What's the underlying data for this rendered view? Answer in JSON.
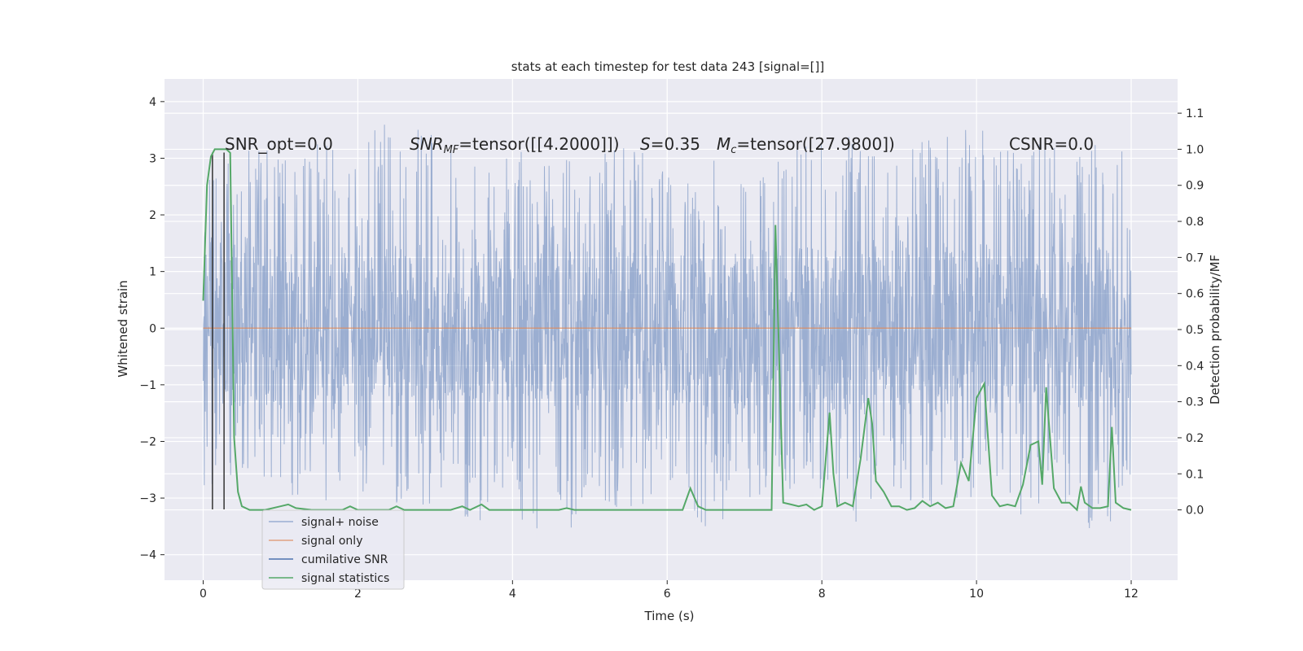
{
  "chart_data": {
    "type": "line",
    "title": "stats at each timestep for test data 243 [signal=[]]",
    "xlabel": "Time (s)",
    "ylabel": "Whitened strain",
    "ylabel_right": "Detection probability/MF",
    "xlim": [
      -0.5,
      12.6
    ],
    "ylim": [
      -4.45,
      4.4
    ],
    "ylim_right": [
      -0.195,
      1.195
    ],
    "x_ticks": [
      0,
      2,
      4,
      6,
      8,
      10,
      12
    ],
    "y_ticks": [
      -4,
      -3,
      -2,
      -1,
      0,
      1,
      2,
      3,
      4
    ],
    "y_ticks_right": [
      0.0,
      0.1,
      0.2,
      0.3,
      0.4,
      0.5,
      0.6,
      0.7,
      0.8,
      0.9,
      1.0,
      1.1
    ],
    "grid": true,
    "legend_placement": "lower-left",
    "colors": {
      "background": "#eaeaf2",
      "grid": "#ffffff",
      "noise": "#4c72b0",
      "signal_only": "#dd8452",
      "cumulative_snr": "#4c72b0",
      "signal_statistics": "#55a868",
      "markers": "#333333"
    },
    "annotations": {
      "snr_opt": "SNR_opt=0.0",
      "snr_mf_prefix": "SNR",
      "snr_mf_sub": "MF",
      "snr_mf_value": "=tensor([[4.2000]])",
      "s_label": "S",
      "s_value": "=0.35",
      "mc_label": "M",
      "mc_sub": "c",
      "mc_value": "=tensor([27.9800])",
      "csnr": "CSNR=0.0"
    },
    "series": [
      {
        "name": "signal+ noise",
        "description": "dense noise trace, envelope approx ±1.3 core with spikes",
        "core_band": [
          -1.3,
          1.3
        ],
        "envelope_upper": [
          [
            0,
            2.6
          ],
          [
            0.5,
            3.2
          ],
          [
            1,
            3.1
          ],
          [
            1.5,
            3.3
          ],
          [
            2,
            3.0
          ],
          [
            2.3,
            3.7
          ],
          [
            3,
            3.5
          ],
          [
            3.5,
            3.0
          ],
          [
            4,
            3.2
          ],
          [
            4.5,
            2.9
          ],
          [
            5,
            3.1
          ],
          [
            5.5,
            3.3
          ],
          [
            6,
            2.9
          ],
          [
            6.5,
            3.2
          ],
          [
            7,
            3.0
          ],
          [
            7.5,
            3.1
          ],
          [
            8,
            3.6
          ],
          [
            8.5,
            3.3
          ],
          [
            9,
            3.2
          ],
          [
            9.5,
            3.4
          ],
          [
            10,
            3.7
          ],
          [
            10.3,
            4.0
          ],
          [
            10.5,
            3.2
          ],
          [
            11,
            3.3
          ],
          [
            11.5,
            3.2
          ],
          [
            11.8,
            3.5
          ],
          [
            12,
            2.6
          ]
        ],
        "envelope_lower": [
          [
            0,
            -2.8
          ],
          [
            0.5,
            -2.6
          ],
          [
            1,
            -2.9
          ],
          [
            1.5,
            -3.1
          ],
          [
            2,
            -2.9
          ],
          [
            2.5,
            -3.2
          ],
          [
            3,
            -3.1
          ],
          [
            3.5,
            -3.5
          ],
          [
            4,
            -3.3
          ],
          [
            4.65,
            -4.1
          ],
          [
            5,
            -3.1
          ],
          [
            5.5,
            -3.2
          ],
          [
            6,
            -3.0
          ],
          [
            6.3,
            -3.4
          ],
          [
            6.5,
            -3.6
          ],
          [
            7,
            -3.1
          ],
          [
            7.5,
            -3.0
          ],
          [
            8,
            -3.0
          ],
          [
            8.5,
            -3.6
          ],
          [
            9,
            -3.3
          ],
          [
            9.5,
            -3.2
          ],
          [
            10,
            -3.0
          ],
          [
            10.5,
            -3.4
          ],
          [
            11,
            -3.1
          ],
          [
            11.5,
            -3.9
          ],
          [
            12,
            -3.0
          ]
        ]
      },
      {
        "name": "signal only",
        "x": [
          0,
          12
        ],
        "y": [
          0,
          0
        ]
      },
      {
        "name": "cumilative SNR",
        "vlines_x": [
          0.12,
          0.27
        ],
        "vline_y": [
          -3.2,
          3.1
        ]
      },
      {
        "name": "signal statistics",
        "axis": "right",
        "x": [
          0.0,
          0.05,
          0.1,
          0.15,
          0.2,
          0.25,
          0.3,
          0.35,
          0.4,
          0.45,
          0.5,
          0.6,
          0.8,
          1.0,
          1.1,
          1.2,
          1.4,
          1.6,
          1.8,
          1.9,
          2.0,
          2.2,
          2.4,
          2.5,
          2.6,
          2.7,
          2.8,
          3.0,
          3.2,
          3.35,
          3.45,
          3.6,
          3.7,
          3.8,
          4.0,
          4.2,
          4.4,
          4.6,
          4.7,
          4.8,
          5.0,
          5.2,
          5.4,
          5.6,
          5.8,
          6.0,
          6.2,
          6.3,
          6.4,
          6.5,
          6.6,
          6.8,
          7.0,
          7.2,
          7.3,
          7.35,
          7.4,
          7.5,
          7.6,
          7.7,
          7.8,
          7.9,
          8.0,
          8.1,
          8.15,
          8.2,
          8.3,
          8.4,
          8.5,
          8.6,
          8.65,
          8.7,
          8.8,
          8.9,
          9.0,
          9.1,
          9.2,
          9.3,
          9.4,
          9.5,
          9.6,
          9.7,
          9.8,
          9.9,
          10.0,
          10.1,
          10.2,
          10.3,
          10.4,
          10.5,
          10.6,
          10.7,
          10.8,
          10.85,
          10.9,
          11.0,
          11.1,
          11.2,
          11.3,
          11.35,
          11.4,
          11.5,
          11.6,
          11.7,
          11.75,
          11.8,
          11.9,
          12.0
        ],
        "y": [
          0.58,
          0.9,
          0.98,
          1.0,
          1.0,
          1.0,
          1.0,
          0.99,
          0.2,
          0.05,
          0.01,
          0.0,
          0.0,
          0.01,
          0.015,
          0.005,
          0.0,
          0.0,
          0.0,
          0.01,
          0.0,
          0.0,
          0.0,
          0.01,
          0.0,
          0.0,
          0.0,
          0.0,
          0.0,
          0.01,
          0.0,
          0.015,
          0.0,
          0.0,
          0.0,
          0.0,
          0.0,
          0.0,
          0.005,
          0.0,
          0.0,
          0.0,
          0.0,
          0.0,
          0.0,
          0.0,
          0.0,
          0.06,
          0.01,
          0.0,
          0.0,
          0.0,
          0.0,
          0.0,
          0.0,
          0.0,
          0.79,
          0.02,
          0.015,
          0.01,
          0.015,
          0.0,
          0.01,
          0.27,
          0.1,
          0.01,
          0.02,
          0.01,
          0.14,
          0.31,
          0.24,
          0.08,
          0.05,
          0.01,
          0.01,
          0.0,
          0.005,
          0.025,
          0.01,
          0.02,
          0.005,
          0.01,
          0.13,
          0.08,
          0.31,
          0.35,
          0.04,
          0.01,
          0.015,
          0.01,
          0.07,
          0.18,
          0.19,
          0.07,
          0.34,
          0.06,
          0.02,
          0.02,
          0.0,
          0.065,
          0.02,
          0.005,
          0.005,
          0.01,
          0.23,
          0.02,
          0.005,
          0.0
        ]
      }
    ]
  }
}
